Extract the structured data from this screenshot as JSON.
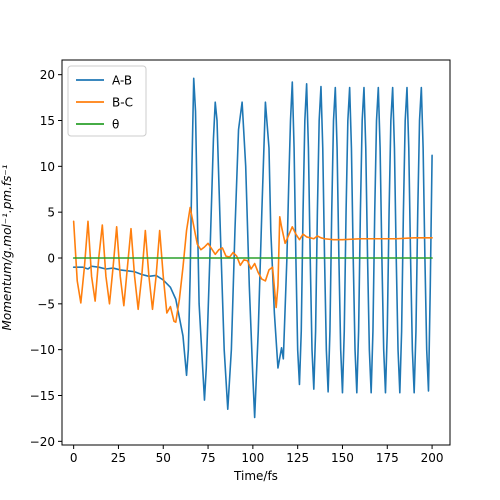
{
  "chart_data": {
    "type": "line",
    "title": "",
    "xlabel": "Time/fs",
    "ylabel": "Momentum/g.mol⁻¹.pm.fs⁻¹",
    "xlim": [
      -6.5,
      210
    ],
    "ylim": [
      -20.4,
      21.6
    ],
    "xticks": [
      0,
      25,
      50,
      75,
      100,
      125,
      150,
      175,
      200
    ],
    "yticks": [
      -20,
      -15,
      -10,
      -5,
      0,
      5,
      10,
      15,
      20
    ],
    "grid": false,
    "legend_position": "top-left",
    "series": [
      {
        "name": "A-B",
        "color": "#1f77b4",
        "points": [
          [
            0,
            -1.0
          ],
          [
            5,
            -1.0
          ],
          [
            8,
            -1.2
          ],
          [
            10,
            -0.9
          ],
          [
            14,
            -1.0
          ],
          [
            18,
            -1.2
          ],
          [
            22,
            -1.1
          ],
          [
            26,
            -1.3
          ],
          [
            30,
            -1.4
          ],
          [
            34,
            -1.5
          ],
          [
            38,
            -1.8
          ],
          [
            42,
            -2.0
          ],
          [
            46,
            -1.9
          ],
          [
            50,
            -2.4
          ],
          [
            54,
            -3.2
          ],
          [
            57,
            -4.5
          ],
          [
            59,
            -6.5
          ],
          [
            61,
            -8.5
          ],
          [
            63,
            -12.8
          ],
          [
            64,
            -10
          ],
          [
            65,
            -2
          ],
          [
            66,
            10
          ],
          [
            67,
            19.6
          ],
          [
            68,
            16
          ],
          [
            69,
            5
          ],
          [
            70,
            -5
          ],
          [
            72,
            -12
          ],
          [
            73,
            -15.5
          ],
          [
            74,
            -12
          ],
          [
            76,
            0
          ],
          [
            78,
            13
          ],
          [
            79,
            17.0
          ],
          [
            80,
            15
          ],
          [
            82,
            2
          ],
          [
            84,
            -10
          ],
          [
            86,
            -16.5
          ],
          [
            88,
            -10
          ],
          [
            90,
            3
          ],
          [
            92,
            14
          ],
          [
            94,
            17.0
          ],
          [
            96,
            10
          ],
          [
            98,
            -3
          ],
          [
            100,
            -13
          ],
          [
            101,
            -17.4
          ],
          [
            103,
            -8
          ],
          [
            105,
            5
          ],
          [
            107,
            17.0
          ],
          [
            109,
            12
          ],
          [
            110,
            3
          ],
          [
            112,
            -6
          ],
          [
            114,
            -12
          ],
          [
            116,
            -9.8
          ],
          [
            117,
            -11
          ],
          [
            119,
            0
          ],
          [
            120,
            8
          ],
          [
            121,
            15
          ],
          [
            122,
            19.2
          ],
          [
            123,
            12
          ],
          [
            124,
            0
          ],
          [
            125,
            -10
          ],
          [
            126,
            -13.8
          ],
          [
            127,
            -8
          ],
          [
            128,
            5
          ],
          [
            129,
            15
          ],
          [
            130,
            19.0
          ],
          [
            131,
            12
          ],
          [
            132,
            0
          ],
          [
            133,
            -10
          ],
          [
            134,
            -14.3
          ],
          [
            135,
            -8
          ],
          [
            136,
            5
          ],
          [
            137,
            15
          ],
          [
            138,
            18.7
          ],
          [
            139,
            12
          ],
          [
            140,
            0
          ],
          [
            141,
            -10
          ],
          [
            142,
            -14.6
          ],
          [
            143,
            -8
          ],
          [
            144,
            5
          ],
          [
            145,
            15
          ],
          [
            146,
            18.6
          ],
          [
            147,
            12
          ],
          [
            148,
            0
          ],
          [
            149,
            -10
          ],
          [
            150,
            -14.7
          ],
          [
            151,
            -8
          ],
          [
            152,
            5
          ],
          [
            153,
            15
          ],
          [
            154,
            18.6
          ],
          [
            155,
            12
          ],
          [
            156,
            0
          ],
          [
            157,
            -10
          ],
          [
            158,
            -14.7
          ],
          [
            159,
            -8
          ],
          [
            160,
            5
          ],
          [
            161,
            15
          ],
          [
            162,
            18.6
          ],
          [
            163,
            12
          ],
          [
            164,
            0
          ],
          [
            165,
            -10
          ],
          [
            166,
            -14.7
          ],
          [
            167,
            -8
          ],
          [
            168,
            5
          ],
          [
            169,
            15
          ],
          [
            170,
            18.6
          ],
          [
            171,
            12
          ],
          [
            172,
            0
          ],
          [
            173,
            -10
          ],
          [
            174,
            -14.7
          ],
          [
            175,
            -8
          ],
          [
            176,
            5
          ],
          [
            177,
            15
          ],
          [
            178,
            18.6
          ],
          [
            179,
            12
          ],
          [
            180,
            0
          ],
          [
            181,
            -10
          ],
          [
            182,
            -14.7
          ],
          [
            183,
            -8
          ],
          [
            184,
            5
          ],
          [
            185,
            15
          ],
          [
            186,
            18.6
          ],
          [
            187,
            12
          ],
          [
            188,
            0
          ],
          [
            189,
            -10
          ],
          [
            190,
            -14.7
          ],
          [
            191,
            -8
          ],
          [
            192,
            5
          ],
          [
            193,
            15
          ],
          [
            194,
            18.6
          ],
          [
            195,
            12
          ],
          [
            196,
            0
          ],
          [
            197,
            -10
          ],
          [
            198,
            -14.5
          ],
          [
            199,
            -3
          ],
          [
            200,
            11.2
          ]
        ]
      },
      {
        "name": "B-C",
        "color": "#ff7f0e",
        "points": [
          [
            0,
            4.0
          ],
          [
            2,
            -2.5
          ],
          [
            4,
            -4.9
          ],
          [
            6,
            -1
          ],
          [
            8,
            4.0
          ],
          [
            10,
            -2
          ],
          [
            12,
            -4.7
          ],
          [
            14,
            0
          ],
          [
            16,
            3.6
          ],
          [
            18,
            -2
          ],
          [
            20,
            -5.0
          ],
          [
            22,
            -1
          ],
          [
            24,
            3.4
          ],
          [
            26,
            -2
          ],
          [
            28,
            -5.2
          ],
          [
            30,
            -1
          ],
          [
            32,
            3.2
          ],
          [
            34,
            -2
          ],
          [
            36,
            -5.6
          ],
          [
            38,
            -2
          ],
          [
            40,
            3.0
          ],
          [
            42,
            -2
          ],
          [
            44,
            -5.6
          ],
          [
            46,
            -2
          ],
          [
            48,
            3.0
          ],
          [
            50,
            -2
          ],
          [
            52,
            -6.0
          ],
          [
            54,
            -5.3
          ],
          [
            56,
            -6.9
          ],
          [
            57,
            -7.0
          ],
          [
            59,
            -4.5
          ],
          [
            61,
            -1
          ],
          [
            63,
            3.0
          ],
          [
            65,
            5.5
          ],
          [
            67,
            3.5
          ],
          [
            69,
            1.5
          ],
          [
            71,
            0.9
          ],
          [
            73,
            1.2
          ],
          [
            75,
            1.6
          ],
          [
            77,
            1.0
          ],
          [
            79,
            0.4
          ],
          [
            81,
            0.9
          ],
          [
            83,
            1.1
          ],
          [
            85,
            0.2
          ],
          [
            87,
            0.1
          ],
          [
            89,
            0.6
          ],
          [
            91,
            0.2
          ],
          [
            93,
            -0.8
          ],
          [
            95,
            -0.2
          ],
          [
            97,
            -0.3
          ],
          [
            99,
            -1.2
          ],
          [
            101,
            -0.6
          ],
          [
            103,
            -1.6
          ],
          [
            105,
            -2.3
          ],
          [
            107,
            -2.5
          ],
          [
            109,
            -1.3
          ],
          [
            111,
            -1.0
          ],
          [
            113,
            -5.4
          ],
          [
            114,
            -3
          ],
          [
            115,
            4.5
          ],
          [
            116,
            3.4
          ],
          [
            118,
            1.6
          ],
          [
            120,
            2.5
          ],
          [
            122,
            3.4
          ],
          [
            124,
            2.6
          ],
          [
            126,
            2.0
          ],
          [
            128,
            2.6
          ],
          [
            130,
            2.3
          ],
          [
            132,
            2.2
          ],
          [
            134,
            2.1
          ],
          [
            136,
            2.4
          ],
          [
            138,
            2.2
          ],
          [
            140,
            2.1
          ],
          [
            145,
            2.0
          ],
          [
            150,
            2.0
          ],
          [
            160,
            2.1
          ],
          [
            170,
            2.1
          ],
          [
            180,
            2.1
          ],
          [
            190,
            2.2
          ],
          [
            200,
            2.2
          ]
        ]
      },
      {
        "name": "θ",
        "color": "#2ca02c",
        "points": [
          [
            0,
            0
          ],
          [
            200,
            0
          ]
        ]
      }
    ]
  }
}
